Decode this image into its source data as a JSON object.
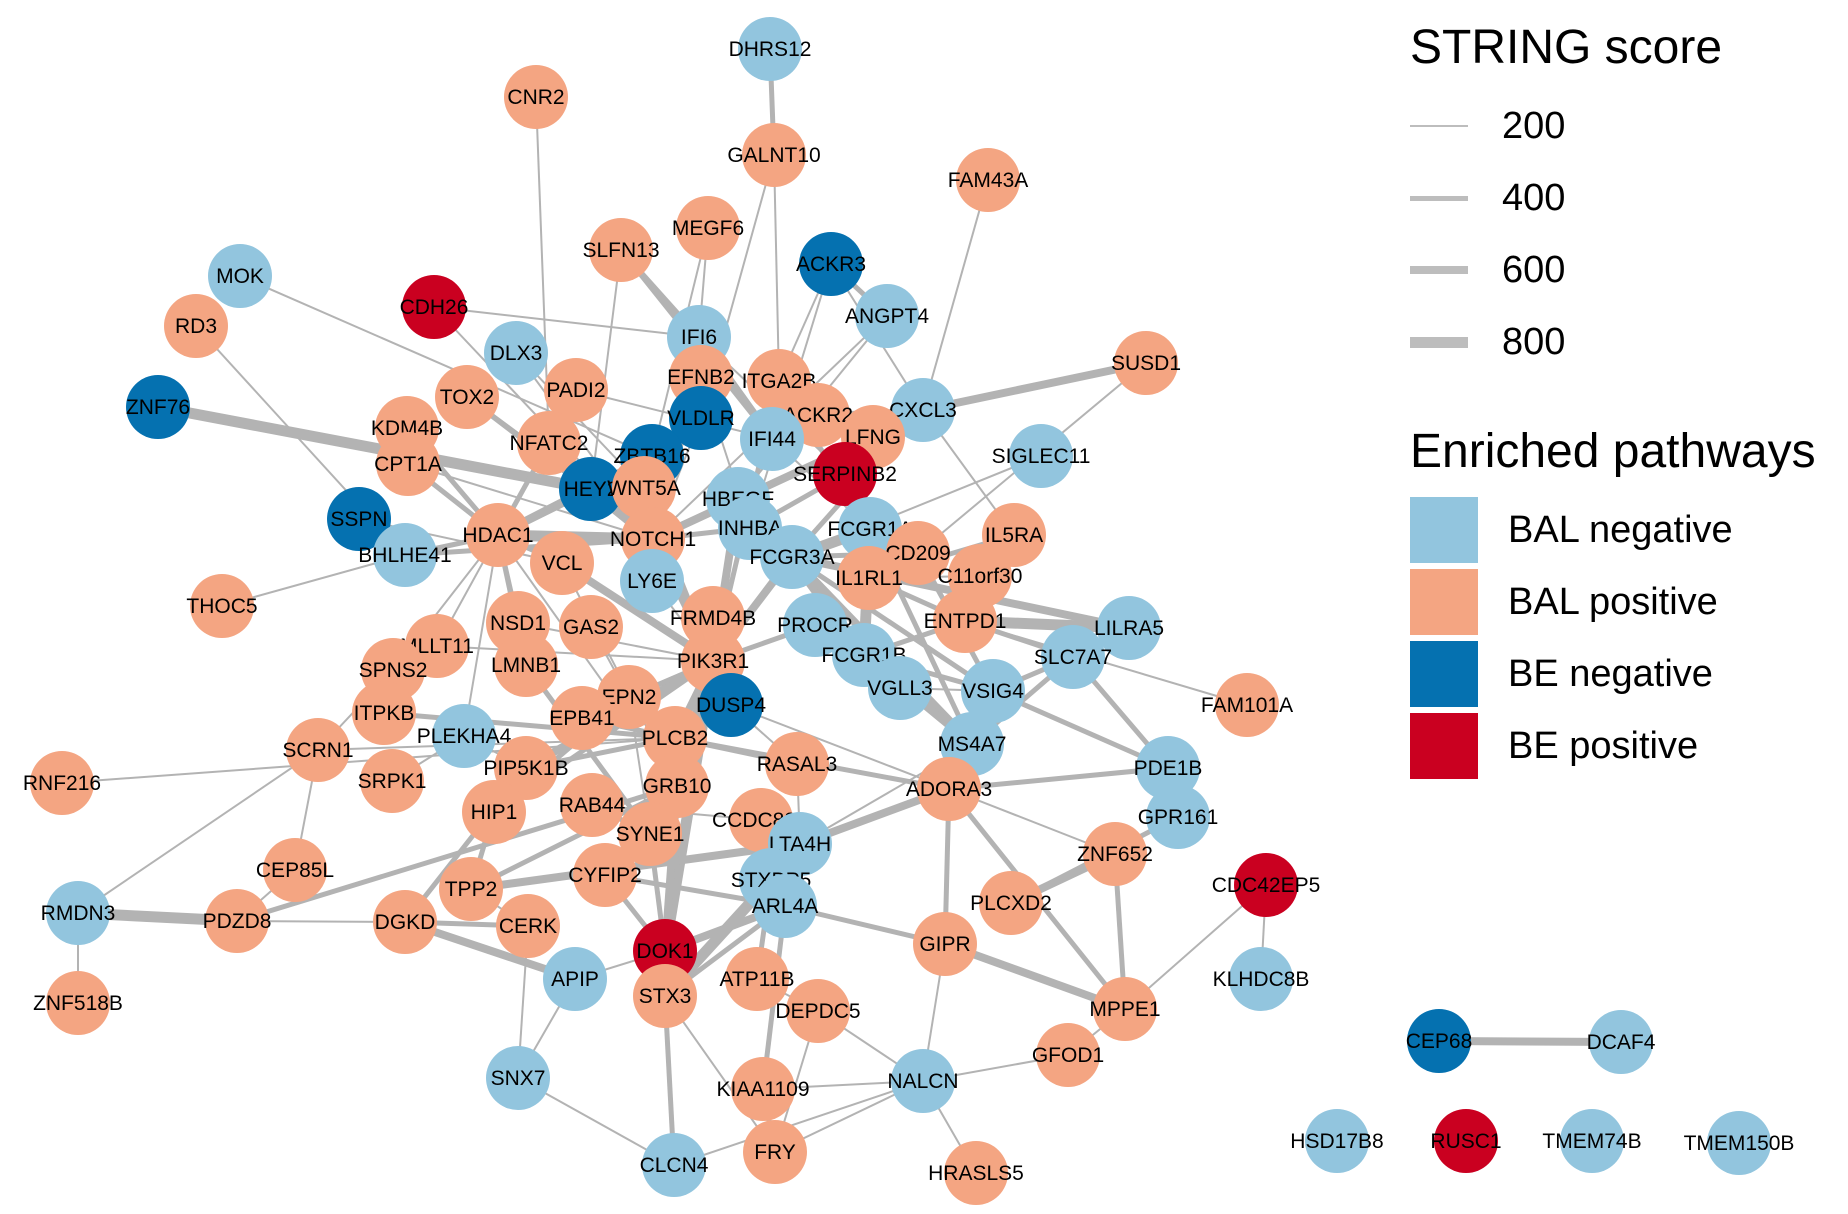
{
  "legend": {
    "score_title": "STRING score",
    "scores": [
      {
        "label": "200",
        "width": 2
      },
      {
        "label": "400",
        "width": 5
      },
      {
        "label": "600",
        "width": 8
      },
      {
        "label": "800",
        "width": 11
      }
    ],
    "pathway_title": "Enriched pathways",
    "pathways": [
      {
        "key": "BALneg",
        "label": "BAL negative",
        "color": "#92c5de"
      },
      {
        "key": "BALpos",
        "label": "BAL positive",
        "color": "#f4a582"
      },
      {
        "key": "BEneg",
        "label": "BE negative",
        "color": "#0571b0"
      },
      {
        "key": "BEpos",
        "label": "BE positive",
        "color": "#ca0020"
      }
    ]
  },
  "edge_color": "#b3b3b3",
  "nodes": [
    {
      "id": "DHRS12",
      "cls": "BALneg"
    },
    {
      "id": "CNR2",
      "cls": "BALpos"
    },
    {
      "id": "GALNT10",
      "cls": "BALpos"
    },
    {
      "id": "FAM43A",
      "cls": "BALpos"
    },
    {
      "id": "MEGF6",
      "cls": "BALpos"
    },
    {
      "id": "SLFN13",
      "cls": "BALpos"
    },
    {
      "id": "ACKR3",
      "cls": "BEneg"
    },
    {
      "id": "MOK",
      "cls": "BALneg"
    },
    {
      "id": "CDH26",
      "cls": "BEpos"
    },
    {
      "id": "RD3",
      "cls": "BALpos"
    },
    {
      "id": "ANGPT4",
      "cls": "BALneg"
    },
    {
      "id": "IFI6",
      "cls": "BALneg"
    },
    {
      "id": "DLX3",
      "cls": "BALneg"
    },
    {
      "id": "SUSD1",
      "cls": "BALpos"
    },
    {
      "id": "ZNF76",
      "cls": "BEneg"
    },
    {
      "id": "TOX2",
      "cls": "BALpos"
    },
    {
      "id": "PADI2",
      "cls": "BALpos"
    },
    {
      "id": "EFNB2",
      "cls": "BALpos"
    },
    {
      "id": "ITGA2B",
      "cls": "BALpos"
    },
    {
      "id": "CXCL3",
      "cls": "BALneg"
    },
    {
      "id": "KDM4B",
      "cls": "BALpos"
    },
    {
      "id": "VLDLR",
      "cls": "BEneg"
    },
    {
      "id": "ACKR2",
      "cls": "BALpos"
    },
    {
      "id": "NFATC2",
      "cls": "BALpos"
    },
    {
      "id": "ZBTB16",
      "cls": "BEneg"
    },
    {
      "id": "IFI44",
      "cls": "BALneg"
    },
    {
      "id": "LFNG",
      "cls": "BALpos"
    },
    {
      "id": "SIGLEC11",
      "cls": "BALneg"
    },
    {
      "id": "SERPINB2",
      "cls": "BEpos"
    },
    {
      "id": "HEY2",
      "cls": "BEneg"
    },
    {
      "id": "CPT1A",
      "cls": "BALpos"
    },
    {
      "id": "SSPN",
      "cls": "BEneg"
    },
    {
      "id": "WNT5A",
      "cls": "BALpos"
    },
    {
      "id": "HBEGF",
      "cls": "BALneg"
    },
    {
      "id": "HDAC1",
      "cls": "BALpos"
    },
    {
      "id": "INHBA",
      "cls": "BALneg"
    },
    {
      "id": "FCGR1A",
      "cls": "BALneg"
    },
    {
      "id": "IL5RA",
      "cls": "BALpos"
    },
    {
      "id": "NOTCH1",
      "cls": "BALpos"
    },
    {
      "id": "BHLHE41",
      "cls": "BALneg"
    },
    {
      "id": "CD209",
      "cls": "BALpos"
    },
    {
      "id": "VCL",
      "cls": "BALpos"
    },
    {
      "id": "FCGR3A",
      "cls": "BALneg"
    },
    {
      "id": "C11orf30",
      "cls": "BALpos"
    },
    {
      "id": "THOC5",
      "cls": "BALpos"
    },
    {
      "id": "LY6E",
      "cls": "BALneg"
    },
    {
      "id": "IL1RL1",
      "cls": "BALpos"
    },
    {
      "id": "FRMD4B",
      "cls": "BALpos"
    },
    {
      "id": "ENTPD1",
      "cls": "BALpos"
    },
    {
      "id": "LILRA5",
      "cls": "BALneg"
    },
    {
      "id": "NSD1",
      "cls": "BALpos"
    },
    {
      "id": "GAS2",
      "cls": "BALpos"
    },
    {
      "id": "PROCR",
      "cls": "BALneg"
    },
    {
      "id": "SLC7A7",
      "cls": "BALneg"
    },
    {
      "id": "MLLT11",
      "cls": "BALpos"
    },
    {
      "id": "FCGR1B",
      "cls": "BALneg"
    },
    {
      "id": "SPNS2",
      "cls": "BALpos"
    },
    {
      "id": "LMNB1",
      "cls": "BALpos"
    },
    {
      "id": "PIK3R1",
      "cls": "BALpos"
    },
    {
      "id": "EPN2",
      "cls": "BALpos"
    },
    {
      "id": "DUSP4",
      "cls": "BEneg"
    },
    {
      "id": "VGLL3",
      "cls": "BALneg"
    },
    {
      "id": "VSIG4",
      "cls": "BALneg"
    },
    {
      "id": "FAM101A",
      "cls": "BALpos"
    },
    {
      "id": "ITPKB",
      "cls": "BALpos"
    },
    {
      "id": "PLEKHA4",
      "cls": "BALneg"
    },
    {
      "id": "EPB41",
      "cls": "BALpos"
    },
    {
      "id": "PLCB2",
      "cls": "BALpos"
    },
    {
      "id": "SCRN1",
      "cls": "BALpos"
    },
    {
      "id": "RNF216",
      "cls": "BALpos"
    },
    {
      "id": "MS4A7",
      "cls": "BALneg"
    },
    {
      "id": "PDE1B",
      "cls": "BALneg"
    },
    {
      "id": "PIP5K1B",
      "cls": "BALpos"
    },
    {
      "id": "RASAL3",
      "cls": "BALpos"
    },
    {
      "id": "SRPK1",
      "cls": "BALpos"
    },
    {
      "id": "GRB10",
      "cls": "BALpos"
    },
    {
      "id": "ADORA3",
      "cls": "BALpos"
    },
    {
      "id": "RAB44",
      "cls": "BALpos"
    },
    {
      "id": "HIP1",
      "cls": "BALpos"
    },
    {
      "id": "GPR161",
      "cls": "BALneg"
    },
    {
      "id": "CCDC88B",
      "cls": "BALpos"
    },
    {
      "id": "SYNE1",
      "cls": "BALpos"
    },
    {
      "id": "LTA4H",
      "cls": "BALneg"
    },
    {
      "id": "ZNF652",
      "cls": "BALpos"
    },
    {
      "id": "CEP85L",
      "cls": "BALpos"
    },
    {
      "id": "CYFIP2",
      "cls": "BALpos"
    },
    {
      "id": "STXBP5",
      "cls": "BALneg"
    },
    {
      "id": "CDC42EP5",
      "cls": "BEpos"
    },
    {
      "id": "TPP2",
      "cls": "BALpos"
    },
    {
      "id": "RMDN3",
      "cls": "BALneg"
    },
    {
      "id": "ARL4A",
      "cls": "BALneg"
    },
    {
      "id": "PLCXD2",
      "cls": "BALpos"
    },
    {
      "id": "PDZD8",
      "cls": "BALpos"
    },
    {
      "id": "DGKD",
      "cls": "BALpos"
    },
    {
      "id": "CERK",
      "cls": "BALpos"
    },
    {
      "id": "GIPR",
      "cls": "BALpos"
    },
    {
      "id": "DOK1",
      "cls": "BEpos"
    },
    {
      "id": "KLHDC8B",
      "cls": "BALneg"
    },
    {
      "id": "APIP",
      "cls": "BALneg"
    },
    {
      "id": "ATP11B",
      "cls": "BALpos"
    },
    {
      "id": "ZNF518B",
      "cls": "BALpos"
    },
    {
      "id": "STX3",
      "cls": "BALpos"
    },
    {
      "id": "MPPE1",
      "cls": "BALpos"
    },
    {
      "id": "DEPDC5",
      "cls": "BALpos"
    },
    {
      "id": "CEP68",
      "cls": "BEneg"
    },
    {
      "id": "DCAF4",
      "cls": "BALneg"
    },
    {
      "id": "GFOD1",
      "cls": "BALpos"
    },
    {
      "id": "SNX7",
      "cls": "BALneg"
    },
    {
      "id": "NALCN",
      "cls": "BALneg"
    },
    {
      "id": "KIAA1109",
      "cls": "BALpos"
    },
    {
      "id": "HSD17B8",
      "cls": "BALneg"
    },
    {
      "id": "RUSC1",
      "cls": "BEpos"
    },
    {
      "id": "TMEM74B",
      "cls": "BALneg"
    },
    {
      "id": "TMEM150B",
      "cls": "BALneg"
    },
    {
      "id": "FRY",
      "cls": "BALpos"
    },
    {
      "id": "CLCN4",
      "cls": "BALneg"
    },
    {
      "id": "HRASLS5",
      "cls": "BALpos"
    }
  ],
  "edges": [
    [
      "DHRS12",
      "GALNT10",
      400
    ],
    [
      "GALNT10",
      "ITGA2B",
      200
    ],
    [
      "GALNT10",
      "VLDLR",
      200
    ],
    [
      "CNR2",
      "NFATC2",
      200
    ],
    [
      "FAM43A",
      "CXCL3",
      200
    ],
    [
      "MEGF6",
      "IFI6",
      200
    ],
    [
      "MEGF6",
      "ZBTB16",
      200
    ],
    [
      "SLFN13",
      "IFI6",
      400
    ],
    [
      "SLFN13",
      "IFI44",
      400
    ],
    [
      "SLFN13",
      "HEY2",
      200
    ],
    [
      "ACKR3",
      "ANGPT4",
      400
    ],
    [
      "ACKR3",
      "ITGA2B",
      200
    ],
    [
      "ACKR3",
      "CXCL3",
      200
    ],
    [
      "ACKR3",
      "INHBA",
      200
    ],
    [
      "MOK",
      "ZBTB16",
      200
    ],
    [
      "CDH26",
      "IFI6",
      200
    ],
    [
      "CDH26",
      "NOTCH1",
      200
    ],
    [
      "RD3",
      "BHLHE41",
      200
    ],
    [
      "ANGPT4",
      "HBEGF",
      200
    ],
    [
      "ANGPT4",
      "NOTCH1",
      200
    ],
    [
      "IFI6",
      "IFI44",
      600
    ],
    [
      "IFI6",
      "SERPINB2",
      200
    ],
    [
      "DLX3",
      "NOTCH1",
      200
    ],
    [
      "DLX3",
      "WNT5A",
      200
    ],
    [
      "SUSD1",
      "CXCL3",
      600
    ],
    [
      "SUSD1",
      "CD209",
      200
    ],
    [
      "ZNF76",
      "HEY2",
      800
    ],
    [
      "TOX2",
      "HEY2",
      400
    ],
    [
      "TOX2",
      "NOTCH1",
      400
    ],
    [
      "PADI2",
      "IFI44",
      200
    ],
    [
      "EFNB2",
      "NOTCH1",
      400
    ],
    [
      "EFNB2",
      "INHBA",
      200
    ],
    [
      "ITGA2B",
      "FCGR1A",
      400
    ],
    [
      "ITGA2B",
      "PIK3R1",
      400
    ],
    [
      "CXCL3",
      "FCGR3A",
      400
    ],
    [
      "CXCL3",
      "IL5RA",
      200
    ],
    [
      "KDM4B",
      "HDAC1",
      400
    ],
    [
      "VLDLR",
      "NOTCH1",
      200
    ],
    [
      "ACKR2",
      "CXCL3",
      400
    ],
    [
      "NFATC2",
      "NOTCH1",
      400
    ],
    [
      "NFATC2",
      "HDAC1",
      400
    ],
    [
      "ZBTB16",
      "HDAC1",
      600
    ],
    [
      "ZBTB16",
      "NOTCH1",
      400
    ],
    [
      "IFI44",
      "FCGR1A",
      200
    ],
    [
      "LFNG",
      "NOTCH1",
      600
    ],
    [
      "SIGLEC11",
      "FCGR3A",
      200
    ],
    [
      "SERPINB2",
      "IL1RL1",
      200
    ],
    [
      "SERPINB2",
      "INHBA",
      400
    ],
    [
      "HEY2",
      "NOTCH1",
      800
    ],
    [
      "HEY2",
      "HDAC1",
      600
    ],
    [
      "CPT1A",
      "HDAC1",
      400
    ],
    [
      "CPT1A",
      "NOTCH1",
      200
    ],
    [
      "SSPN",
      "VCL",
      200
    ],
    [
      "WNT5A",
      "NOTCH1",
      600
    ],
    [
      "WNT5A",
      "PIK3R1",
      400
    ],
    [
      "HBEGF",
      "NOTCH1",
      400
    ],
    [
      "HBEGF",
      "PIK3R1",
      600
    ],
    [
      "HDAC1",
      "NOTCH1",
      800
    ],
    [
      "HDAC1",
      "NSD1",
      400
    ],
    [
      "HDAC1",
      "VCL",
      400
    ],
    [
      "HDAC1",
      "GRB10",
      200
    ],
    [
      "INHBA",
      "NOTCH1",
      400
    ],
    [
      "INHBA",
      "FCGR3A",
      200
    ],
    [
      "FCGR1A",
      "FCGR3A",
      800
    ],
    [
      "FCGR1A",
      "FCGR1B",
      800
    ],
    [
      "FCGR1A",
      "CD209",
      400
    ],
    [
      "FCGR1A",
      "MS4A7",
      400
    ],
    [
      "IL5RA",
      "IL1RL1",
      400
    ],
    [
      "NOTCH1",
      "PIK3R1",
      600
    ],
    [
      "NOTCH1",
      "LY6E",
      400
    ],
    [
      "BHLHE41",
      "HDAC1",
      400
    ],
    [
      "BHLHE41",
      "NOTCH1",
      400
    ],
    [
      "CD209",
      "FCGR3A",
      400
    ],
    [
      "CD209",
      "VSIG4",
      400
    ],
    [
      "VCL",
      "PIK3R1",
      600
    ],
    [
      "VCL",
      "GRB10",
      200
    ],
    [
      "FCGR3A",
      "FCGR1B",
      800
    ],
    [
      "FCGR3A",
      "PIK3R1",
      600
    ],
    [
      "FCGR3A",
      "VSIG4",
      400
    ],
    [
      "FCGR3A",
      "MS4A7",
      600
    ],
    [
      "FCGR3A",
      "LILRA5",
      600
    ],
    [
      "C11orf30",
      "IL1RL1",
      200
    ],
    [
      "THOC5",
      "BHLHE41",
      200
    ],
    [
      "LY6E",
      "PIK3R1",
      200
    ],
    [
      "IL1RL1",
      "ENTPD1",
      400
    ],
    [
      "FRMD4B",
      "PIK3R1",
      200
    ],
    [
      "ENTPD1",
      "LILRA5",
      800
    ],
    [
      "ENTPD1",
      "SLC7A7",
      400
    ],
    [
      "NSD1",
      "PIK3R1",
      200
    ],
    [
      "GAS2",
      "EPN2",
      200
    ],
    [
      "PROCR",
      "PIK3R1",
      400
    ],
    [
      "PROCR",
      "FCGR1B",
      600
    ],
    [
      "SLC7A7",
      "VSIG4",
      400
    ],
    [
      "SLC7A7",
      "MS4A7",
      400
    ],
    [
      "SLC7A7",
      "PDE1B",
      400
    ],
    [
      "MLLT11",
      "HDAC1",
      200
    ],
    [
      "MLLT11",
      "PIK3R1",
      200
    ],
    [
      "FCGR1B",
      "VSIG4",
      400
    ],
    [
      "FCGR1B",
      "MS4A7",
      600
    ],
    [
      "FCGR1B",
      "ENTPD1",
      400
    ],
    [
      "SPNS2",
      "HDAC1",
      200
    ],
    [
      "LMNB1",
      "HDAC1",
      400
    ],
    [
      "LMNB1",
      "SYNE1",
      400
    ],
    [
      "PIK3R1",
      "EPN2",
      400
    ],
    [
      "PIK3R1",
      "PLCB2",
      600
    ],
    [
      "PIK3R1",
      "GRB10",
      800
    ],
    [
      "PIK3R1",
      "DUSP4",
      400
    ],
    [
      "PIK3R1",
      "DOK1",
      800
    ],
    [
      "PIK3R1",
      "HIP1",
      400
    ],
    [
      "PIK3R1",
      "PIP5K1B",
      600
    ],
    [
      "PIK3R1",
      "EPB41",
      400
    ],
    [
      "PIK3R1",
      "SYNE1",
      200
    ],
    [
      "EPN2",
      "HIP1",
      400
    ],
    [
      "EPN2",
      "SYNE1",
      200
    ],
    [
      "DUSP4",
      "RASAL3",
      200
    ],
    [
      "DUSP4",
      "ADORA3",
      200
    ],
    [
      "VGLL3",
      "VSIG4",
      200
    ],
    [
      "VSIG4",
      "MS4A7",
      400
    ],
    [
      "VSIG4",
      "PDE1B",
      400
    ],
    [
      "FAM101A",
      "ENTPD1",
      200
    ],
    [
      "ITPKB",
      "PLCB2",
      400
    ],
    [
      "PLEKHA4",
      "PIP5K1B",
      200
    ],
    [
      "PLEKHA4",
      "HDAC1",
      200
    ],
    [
      "EPB41",
      "PLCB2",
      400
    ],
    [
      "PLCB2",
      "ADORA3",
      400
    ],
    [
      "PLCB2",
      "RASAL3",
      400
    ],
    [
      "PLCB2",
      "PIP5K1B",
      400
    ],
    [
      "PLCB2",
      "GRB10",
      200
    ],
    [
      "SCRN1",
      "PLCB2",
      200
    ],
    [
      "SCRN1",
      "SPNS2",
      200
    ],
    [
      "RNF216",
      "PLCB2",
      200
    ],
    [
      "MS4A7",
      "ADORA3",
      400
    ],
    [
      "MS4A7",
      "LTA4H",
      200
    ],
    [
      "PDE1B",
      "ADORA3",
      400
    ],
    [
      "PDE1B",
      "GPR161",
      400
    ],
    [
      "PIP5K1B",
      "HIP1",
      400
    ],
    [
      "RASAL3",
      "LTA4H",
      200
    ],
    [
      "SRPK1",
      "PLEKHA4",
      200
    ],
    [
      "GRB10",
      "DOK1",
      600
    ],
    [
      "GRB10",
      "SYNE1",
      200
    ],
    [
      "ADORA3",
      "GIPR",
      400
    ],
    [
      "ADORA3",
      "LTA4H",
      600
    ],
    [
      "ADORA3",
      "ZNF652",
      200
    ],
    [
      "ADORA3",
      "MPPE1",
      400
    ],
    [
      "RAB44",
      "SYNE1",
      400
    ],
    [
      "RAB44",
      "CCDC88B",
      200
    ],
    [
      "HIP1",
      "TPP2",
      400
    ],
    [
      "GPR161",
      "PLCXD2",
      400
    ],
    [
      "CCDC88B",
      "LTA4H",
      200
    ],
    [
      "SYNE1",
      "CYFIP2",
      400
    ],
    [
      "SYNE1",
      "DOK1",
      400
    ],
    [
      "LTA4H",
      "TPP2",
      600
    ],
    [
      "LTA4H",
      "STXBP5",
      200
    ],
    [
      "ZNF652",
      "PLCXD2",
      600
    ],
    [
      "ZNF652",
      "MPPE1",
      400
    ],
    [
      "CEP85L",
      "SCRN1",
      200
    ],
    [
      "CEP85L",
      "PDZD8",
      200
    ],
    [
      "CYFIP2",
      "DOK1",
      400
    ],
    [
      "CYFIP2",
      "ARL4A",
      400
    ],
    [
      "STXBP5",
      "STX3",
      800
    ],
    [
      "STXBP5",
      "ARL4A",
      400
    ],
    [
      "CDC42EP5",
      "KLHDC8B",
      200
    ],
    [
      "CDC42EP5",
      "MPPE1",
      200
    ],
    [
      "TPP2",
      "GRB10",
      400
    ],
    [
      "RMDN3",
      "PDZD8",
      800
    ],
    [
      "RMDN3",
      "SCRN1",
      200
    ],
    [
      "RMDN3",
      "ZNF518B",
      200
    ],
    [
      "ARL4A",
      "GIPR",
      400
    ],
    [
      "ARL4A",
      "STX3",
      400
    ],
    [
      "PDZD8",
      "DGKD",
      200
    ],
    [
      "PDZD8",
      "GRB10",
      400
    ],
    [
      "DGKD",
      "CERK",
      400
    ],
    [
      "DGKD",
      "APIP",
      600
    ],
    [
      "DGKD",
      "PIP5K1B",
      400
    ],
    [
      "CERK",
      "TPP2",
      200
    ],
    [
      "GIPR",
      "MPPE1",
      600
    ],
    [
      "GIPR",
      "NALCN",
      200
    ],
    [
      "DOK1",
      "STX3",
      400
    ],
    [
      "DOK1",
      "APIP",
      200
    ],
    [
      "DOK1",
      "ARL4A",
      600
    ],
    [
      "APIP",
      "SNX7",
      200
    ],
    [
      "ATP11B",
      "STXBP5",
      400
    ],
    [
      "ATP11B",
      "DEPDC5",
      200
    ],
    [
      "STX3",
      "CLCN4",
      400
    ],
    [
      "STX3",
      "FRY",
      200
    ],
    [
      "DEPDC5",
      "NALCN",
      200
    ],
    [
      "CEP68",
      "DCAF4",
      600
    ],
    [
      "GFOD1",
      "NALCN",
      200
    ],
    [
      "GFOD1",
      "MPPE1",
      200
    ],
    [
      "SNX7",
      "CLCN4",
      200
    ],
    [
      "SNX7",
      "CERK",
      200
    ],
    [
      "NALCN",
      "KIAA1109",
      200
    ],
    [
      "NALCN",
      "FRY",
      200
    ],
    [
      "NALCN",
      "HRASLS5",
      200
    ],
    [
      "NALCN",
      "CLCN4",
      200
    ],
    [
      "KIAA1109",
      "FRY",
      400
    ],
    [
      "KIAA1109",
      "ARL4A",
      400
    ],
    [
      "FRY",
      "DEPDC5",
      200
    ]
  ]
}
